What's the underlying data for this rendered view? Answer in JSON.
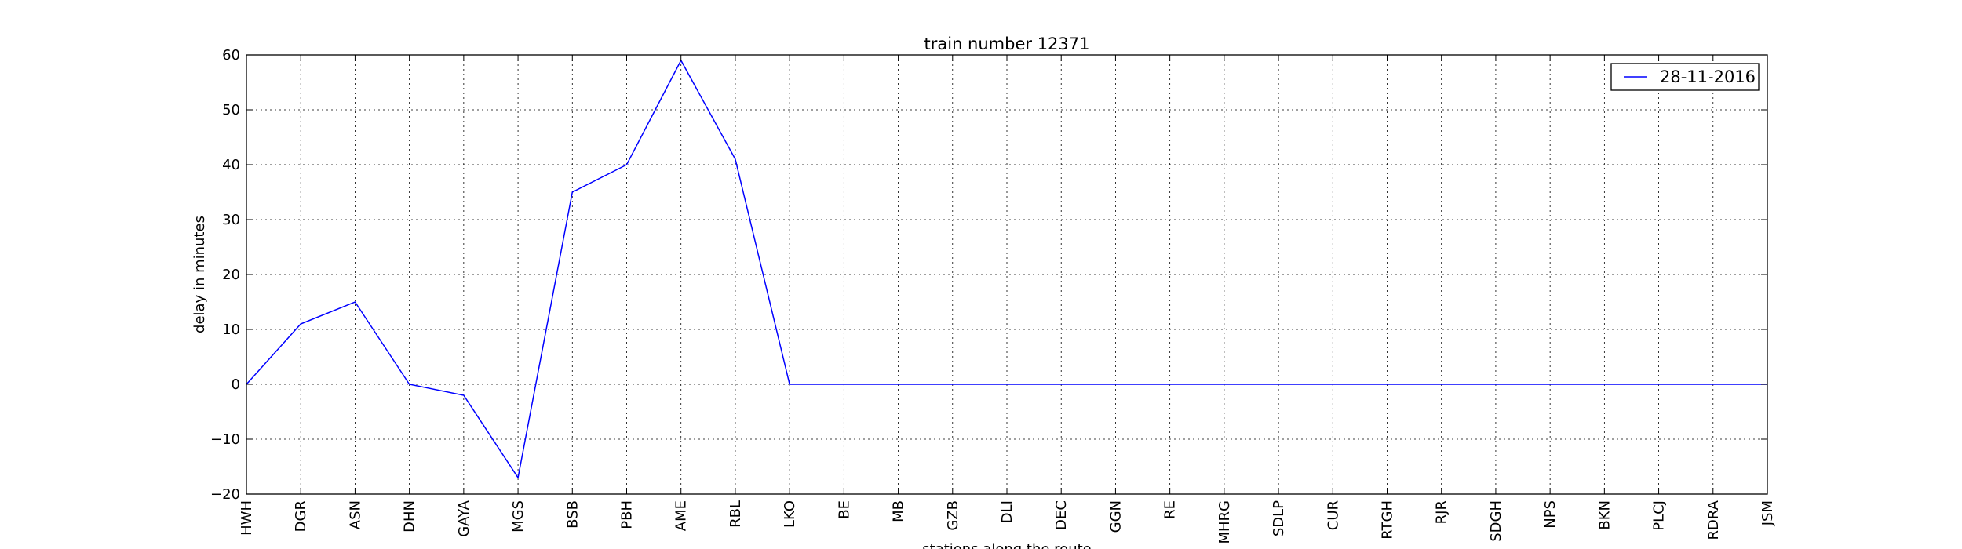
{
  "chart_data": {
    "type": "line",
    "title": "train number 12371",
    "xlabel": "stations along the route",
    "ylabel": "delay in minutes",
    "ylim": [
      -20,
      60
    ],
    "yticks": [
      -20,
      -10,
      0,
      10,
      20,
      30,
      40,
      50,
      60
    ],
    "grid": true,
    "legend_position": "top-right",
    "categories": [
      "HWH",
      "DGR",
      "ASN",
      "DHN",
      "GAYA",
      "MGS",
      "BSB",
      "PBH",
      "AME",
      "RBL",
      "LKO",
      "BE",
      "MB",
      "GZB",
      "DLI",
      "DEC",
      "GGN",
      "RE",
      "MHRG",
      "SDLP",
      "CUR",
      "RTGH",
      "RJR",
      "SDGH",
      "NPS",
      "BKN",
      "PLCJ",
      "RDRA",
      "JSM"
    ],
    "series": [
      {
        "name": "28-11-2016",
        "color": "#0000ff",
        "values": [
          0,
          11,
          15,
          0,
          -2,
          -17,
          35,
          40,
          59,
          41,
          0,
          0,
          0,
          0,
          0,
          0,
          0,
          0,
          0,
          0,
          0,
          0,
          0,
          0,
          0,
          0,
          0,
          0,
          0
        ]
      }
    ]
  }
}
